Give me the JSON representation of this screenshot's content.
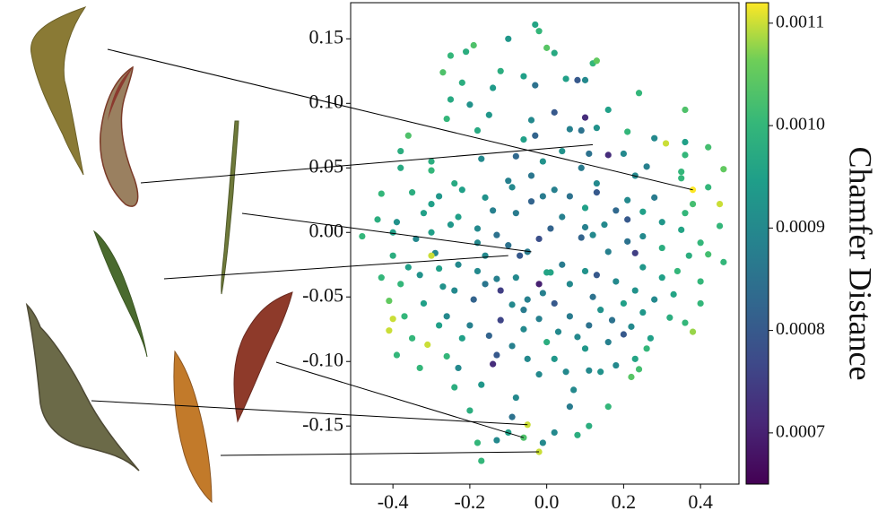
{
  "chart_data": {
    "type": "scatter",
    "title": "",
    "xlabel": "",
    "ylabel": "",
    "xlim": [
      -0.51,
      0.5
    ],
    "ylim": [
      -0.195,
      0.178
    ],
    "x_ticks": [
      -0.4,
      -0.2,
      0.0,
      0.2,
      0.4
    ],
    "x_tick_labels": [
      "-0.4",
      "-0.2",
      "0.0",
      "0.2",
      "0.4"
    ],
    "y_ticks": [
      0.15,
      0.1,
      0.05,
      0.0,
      -0.05,
      -0.1,
      -0.15
    ],
    "y_tick_labels": [
      "0.15",
      "0.10",
      "0.05",
      "0.00",
      "-0.05",
      "-0.10",
      "-0.15"
    ],
    "grid": false,
    "colormap": "viridis",
    "colorbar": {
      "label": "Chamfer Distance",
      "min": 0.00065,
      "max": 0.00112,
      "ticks": [
        0.0011,
        0.001,
        0.0009,
        0.0008,
        0.0007
      ],
      "tick_labels": [
        "0.0011",
        "0.0010",
        "0.0009",
        "0.0008",
        "0.0007"
      ]
    },
    "points": [
      [
        -0.03,
        0.161,
        0.00096
      ],
      [
        -0.02,
        0.156,
        0.001
      ],
      [
        -0.1,
        0.15,
        0.00093
      ],
      [
        -0.19,
        0.145,
        0.00103
      ],
      [
        -0.21,
        0.14,
        0.00098
      ],
      [
        0.0,
        0.143,
        0.00104
      ],
      [
        0.02,
        0.139,
        0.00097
      ],
      [
        -0.25,
        0.137,
        0.001
      ],
      [
        0.12,
        0.131,
        0.001
      ],
      [
        0.13,
        0.133,
        0.00105
      ],
      [
        -0.12,
        0.125,
        0.00098
      ],
      [
        0.05,
        0.119,
        0.00095
      ],
      [
        0.1,
        0.118,
        0.0009
      ],
      [
        -0.27,
        0.124,
        0.00103
      ],
      [
        -0.22,
        0.116,
        0.00098
      ],
      [
        -0.06,
        0.121,
        0.00095
      ],
      [
        -0.14,
        0.112,
        0.00094
      ],
      [
        0.08,
        0.118,
        0.0008
      ],
      [
        -0.03,
        0.114,
        0.00085
      ],
      [
        0.24,
        0.108,
        0.001
      ],
      [
        -0.25,
        0.103,
        0.00097
      ],
      [
        -0.2,
        0.099,
        0.00092
      ],
      [
        0.16,
        0.095,
        0.00095
      ],
      [
        0.1,
        0.089,
        0.00072
      ],
      [
        0.02,
        0.093,
        0.0008
      ],
      [
        -0.15,
        0.091,
        0.00093
      ],
      [
        0.36,
        0.095,
        0.00103
      ],
      [
        -0.26,
        0.088,
        0.001
      ],
      [
        0.13,
        0.081,
        0.00092
      ],
      [
        0.09,
        0.079,
        0.00085
      ],
      [
        -0.04,
        0.087,
        0.0009
      ],
      [
        -0.18,
        0.079,
        0.00097
      ],
      [
        0.06,
        0.08,
        0.00088
      ],
      [
        -0.03,
        0.075,
        0.00082
      ],
      [
        0.21,
        0.078,
        0.001
      ],
      [
        -0.06,
        0.072,
        0.00095
      ],
      [
        -0.36,
        0.075,
        0.00103
      ],
      [
        0.28,
        0.073,
        0.0009
      ],
      [
        0.36,
        0.07,
        0.00095
      ],
      [
        -0.38,
        0.063,
        0.00098
      ],
      [
        0.04,
        0.063,
        0.00092
      ],
      [
        0.11,
        0.061,
        0.00085
      ],
      [
        0.16,
        0.06,
        0.00072
      ],
      [
        0.31,
        0.069,
        0.0011
      ],
      [
        0.42,
        0.066,
        0.00102
      ],
      [
        0.2,
        0.061,
        0.0009
      ],
      [
        0.36,
        0.06,
        0.001
      ],
      [
        -0.08,
        0.059,
        0.00083
      ],
      [
        -0.3,
        0.055,
        0.00098
      ],
      [
        -0.17,
        0.057,
        0.0009
      ],
      [
        -0.38,
        0.05,
        0.00097
      ],
      [
        -0.01,
        0.055,
        0.00092
      ],
      [
        0.09,
        0.05,
        0.00087
      ],
      [
        0.26,
        0.051,
        0.00088
      ],
      [
        0.35,
        0.047,
        0.001
      ],
      [
        0.46,
        0.049,
        0.00105
      ],
      [
        -0.3,
        0.048,
        0.001
      ],
      [
        -0.04,
        0.044,
        0.00086
      ],
      [
        0.23,
        0.044,
        0.0009
      ],
      [
        0.35,
        0.042,
        0.001
      ],
      [
        -0.24,
        0.038,
        0.00097
      ],
      [
        -0.1,
        0.04,
        0.00088
      ],
      [
        0.13,
        0.038,
        0.0009
      ],
      [
        0.38,
        0.033,
        0.00112
      ],
      [
        -0.09,
        0.035,
        0.0009
      ],
      [
        0.02,
        0.033,
        0.00088
      ],
      [
        0.42,
        0.035,
        0.001
      ],
      [
        -0.43,
        0.03,
        0.001
      ],
      [
        -0.35,
        0.031,
        0.00098
      ],
      [
        -0.22,
        0.033,
        0.00095
      ],
      [
        -0.28,
        0.028,
        0.00093
      ],
      [
        -0.16,
        0.027,
        0.00092
      ],
      [
        -0.01,
        0.028,
        0.00087
      ],
      [
        0.13,
        0.031,
        0.0008
      ],
      [
        0.28,
        0.027,
        0.00087
      ],
      [
        0.21,
        0.025,
        0.0009
      ],
      [
        0.06,
        0.028,
        0.00085
      ],
      [
        -0.04,
        0.024,
        0.00082
      ],
      [
        0.45,
        0.022,
        0.0011
      ],
      [
        0.38,
        0.022,
        0.00102
      ],
      [
        -0.3,
        0.022,
        0.00095
      ],
      [
        0.1,
        0.019,
        0.00095
      ],
      [
        0.18,
        0.017,
        0.00083
      ],
      [
        0.25,
        0.016,
        0.00095
      ],
      [
        -0.14,
        0.017,
        0.00088
      ],
      [
        -0.44,
        0.01,
        0.00098
      ],
      [
        -0.32,
        0.015,
        0.00095
      ],
      [
        -0.08,
        0.015,
        0.00087
      ],
      [
        0.36,
        0.015,
        0.001
      ],
      [
        -0.23,
        0.012,
        0.00095
      ],
      [
        0.04,
        0.012,
        0.00088
      ],
      [
        0.21,
        0.01,
        0.0008
      ],
      [
        -0.39,
        0.008,
        0.00092
      ],
      [
        0.3,
        0.008,
        0.00093
      ],
      [
        -0.25,
        0.006,
        0.00093
      ],
      [
        0.15,
        0.006,
        0.0009
      ],
      [
        0.45,
        0.005,
        0.001
      ],
      [
        0.01,
        0.003,
        0.00082
      ],
      [
        0.1,
        0.004,
        0.00088
      ],
      [
        -0.18,
        0.003,
        0.0009
      ],
      [
        -0.4,
        0.0,
        0.00095
      ],
      [
        0.35,
        0.002,
        0.00096
      ],
      [
        -0.3,
        0.0,
        0.00095
      ],
      [
        -0.13,
        -0.002,
        0.00085
      ],
      [
        0.12,
        -0.002,
        0.0009
      ],
      [
        -0.48,
        -0.003,
        0.001
      ],
      [
        -0.34,
        -0.005,
        0.0009
      ],
      [
        0.25,
        -0.003,
        0.0009
      ],
      [
        -0.02,
        -0.005,
        0.00078
      ],
      [
        0.09,
        -0.004,
        0.00082
      ],
      [
        -0.18,
        -0.008,
        0.0009
      ],
      [
        0.21,
        -0.007,
        0.00085
      ],
      [
        0.4,
        -0.008,
        0.001
      ],
      [
        -0.1,
        -0.01,
        0.00085
      ],
      [
        0.3,
        -0.012,
        0.00098
      ],
      [
        0.42,
        -0.017,
        0.00102
      ],
      [
        -0.29,
        -0.016,
        0.0009
      ],
      [
        -0.4,
        -0.018,
        0.00098
      ],
      [
        -0.16,
        -0.018,
        0.0009
      ],
      [
        0.16,
        -0.015,
        0.00088
      ],
      [
        0.23,
        -0.016,
        0.00075
      ],
      [
        -0.07,
        -0.018,
        0.0008
      ],
      [
        0.37,
        -0.018,
        0.00098
      ],
      [
        -0.3,
        -0.018,
        0.0011
      ],
      [
        -0.05,
        -0.015,
        0.00087
      ],
      [
        0.46,
        -0.023,
        0.001
      ],
      [
        0.04,
        -0.025,
        0.00087
      ],
      [
        -0.28,
        -0.028,
        0.00095
      ],
      [
        -0.23,
        -0.025,
        0.0009
      ],
      [
        0.25,
        -0.027,
        0.00093
      ],
      [
        0.1,
        -0.03,
        0.00092
      ],
      [
        -0.18,
        -0.03,
        0.0009
      ],
      [
        0.34,
        -0.03,
        0.001
      ],
      [
        -0.36,
        -0.027,
        0.00095
      ],
      [
        -0.43,
        -0.035,
        0.001
      ],
      [
        -0.33,
        -0.033,
        0.00092
      ],
      [
        0.13,
        -0.033,
        0.0008
      ],
      [
        -0.08,
        -0.035,
        0.0009
      ],
      [
        0.18,
        -0.038,
        0.0009
      ],
      [
        0.3,
        -0.035,
        0.00095
      ],
      [
        -0.13,
        -0.036,
        0.00088
      ],
      [
        0.0,
        -0.031,
        0.00096
      ],
      [
        0.01,
        -0.031,
        0.00096
      ],
      [
        0.4,
        -0.038,
        0.001
      ],
      [
        -0.38,
        -0.04,
        0.001
      ],
      [
        -0.27,
        -0.042,
        0.00092
      ],
      [
        0.23,
        -0.045,
        0.00092
      ],
      [
        -0.16,
        -0.04,
        0.00086
      ],
      [
        -0.02,
        -0.04,
        0.0007
      ],
      [
        0.06,
        -0.04,
        0.0009
      ],
      [
        -0.12,
        -0.045,
        0.00075
      ],
      [
        -0.24,
        -0.045,
        0.0009
      ],
      [
        0.33,
        -0.048,
        0.00096
      ],
      [
        -0.01,
        -0.047,
        0.00088
      ],
      [
        0.12,
        -0.05,
        0.00085
      ],
      [
        -0.05,
        -0.052,
        0.00088
      ],
      [
        0.28,
        -0.052,
        0.0009
      ],
      [
        -0.41,
        -0.053,
        0.00105
      ],
      [
        -0.32,
        -0.055,
        0.00095
      ],
      [
        0.2,
        -0.055,
        0.00095
      ],
      [
        0.02,
        -0.055,
        0.0008
      ],
      [
        -0.09,
        -0.056,
        0.0009
      ],
      [
        0.4,
        -0.055,
        0.001
      ],
      [
        -0.19,
        -0.052,
        0.00082
      ],
      [
        0.14,
        -0.06,
        0.00092
      ],
      [
        -0.06,
        -0.06,
        0.00087
      ],
      [
        0.25,
        -0.062,
        0.00093
      ],
      [
        -0.37,
        -0.065,
        0.001
      ],
      [
        -0.26,
        -0.065,
        0.0009
      ],
      [
        0.06,
        -0.065,
        0.00087
      ],
      [
        0.32,
        -0.066,
        0.00098
      ],
      [
        -0.12,
        -0.068,
        0.00076
      ],
      [
        0.17,
        -0.068,
        0.00085
      ],
      [
        -0.02,
        -0.067,
        0.00088
      ],
      [
        0.36,
        -0.07,
        0.001
      ],
      [
        -0.4,
        -0.067,
        0.0011
      ],
      [
        -0.28,
        -0.072,
        0.00095
      ],
      [
        -0.2,
        -0.072,
        0.00088
      ],
      [
        0.11,
        -0.072,
        0.00085
      ],
      [
        0.22,
        -0.073,
        0.0009
      ],
      [
        -0.06,
        -0.075,
        0.0009
      ],
      [
        -0.41,
        -0.076,
        0.0011
      ],
      [
        0.03,
        -0.077,
        0.0009
      ],
      [
        0.38,
        -0.077,
        0.00108
      ],
      [
        -0.15,
        -0.08,
        0.00082
      ],
      [
        0.2,
        -0.079,
        0.0008
      ],
      [
        -0.35,
        -0.082,
        0.001
      ],
      [
        -0.22,
        -0.082,
        0.00095
      ],
      [
        0.08,
        -0.081,
        0.0009
      ],
      [
        0.27,
        -0.082,
        0.00095
      ],
      [
        0.0,
        -0.085,
        0.00098
      ],
      [
        0.16,
        -0.085,
        0.00088
      ],
      [
        -0.31,
        -0.087,
        0.0011
      ],
      [
        -0.09,
        -0.088,
        0.00088
      ],
      [
        0.26,
        -0.09,
        0.001
      ],
      [
        0.1,
        -0.09,
        0.00093
      ],
      [
        -0.39,
        -0.095,
        0.001
      ],
      [
        -0.26,
        -0.096,
        0.001
      ],
      [
        -0.13,
        -0.095,
        0.0008
      ],
      [
        0.02,
        -0.098,
        0.00093
      ],
      [
        0.23,
        -0.098,
        0.00096
      ],
      [
        -0.05,
        -0.098,
        0.0009
      ],
      [
        -0.14,
        -0.102,
        0.00072
      ],
      [
        0.18,
        -0.103,
        0.0009
      ],
      [
        -0.33,
        -0.105,
        0.001
      ],
      [
        0.24,
        -0.106,
        0.00102
      ],
      [
        -0.23,
        -0.105,
        0.0009
      ],
      [
        0.05,
        -0.108,
        0.0009
      ],
      [
        0.11,
        -0.107,
        0.0009
      ],
      [
        0.14,
        -0.108,
        0.00092
      ],
      [
        0.22,
        -0.112,
        0.00104
      ],
      [
        -0.02,
        -0.11,
        0.0009
      ],
      [
        -0.17,
        -0.118,
        0.00093
      ],
      [
        -0.24,
        -0.12,
        0.00098
      ],
      [
        0.07,
        -0.122,
        0.0009
      ],
      [
        -0.08,
        -0.128,
        0.0009
      ],
      [
        -0.2,
        -0.138,
        0.00098
      ],
      [
        0.06,
        -0.135,
        0.00087
      ],
      [
        0.16,
        -0.135,
        0.001
      ],
      [
        -0.09,
        -0.143,
        0.00085
      ],
      [
        -0.05,
        -0.149,
        0.0011
      ],
      [
        0.11,
        -0.15,
        0.00098
      ],
      [
        -0.1,
        -0.155,
        0.00095
      ],
      [
        0.02,
        -0.155,
        0.0009
      ],
      [
        0.08,
        -0.157,
        0.00098
      ],
      [
        -0.13,
        -0.161,
        0.0009
      ],
      [
        -0.06,
        -0.159,
        0.00103
      ],
      [
        -0.01,
        -0.163,
        0.0009
      ],
      [
        -0.18,
        -0.163,
        0.001
      ],
      [
        -0.02,
        -0.17,
        0.0011
      ],
      [
        -0.17,
        -0.177,
        0.001
      ]
    ],
    "annotations": [
      {
        "name": "leaf-thumb-1",
        "type": "olive curved leaf",
        "point": [
          0.38,
          0.033
        ]
      },
      {
        "name": "leaf-thumb-2",
        "type": "reddish curled leaf",
        "point": [
          0.12,
          0.068
        ]
      },
      {
        "name": "leaf-thumb-3",
        "type": "narrow stem leaf",
        "point": [
          -0.04,
          -0.015
        ]
      },
      {
        "name": "leaf-thumb-4",
        "type": "thin green blade",
        "point": [
          -0.1,
          -0.018
        ]
      },
      {
        "name": "leaf-thumb-5",
        "type": "brown flat leaf",
        "point": [
          -0.05,
          -0.149
        ]
      },
      {
        "name": "leaf-thumb-6",
        "type": "red serrated leaf",
        "point": [
          -0.06,
          -0.159
        ]
      },
      {
        "name": "leaf-thumb-7",
        "type": "orange long leaf",
        "point": [
          -0.02,
          -0.17
        ]
      }
    ]
  },
  "icons": [
    "leaf-thumbnail"
  ]
}
